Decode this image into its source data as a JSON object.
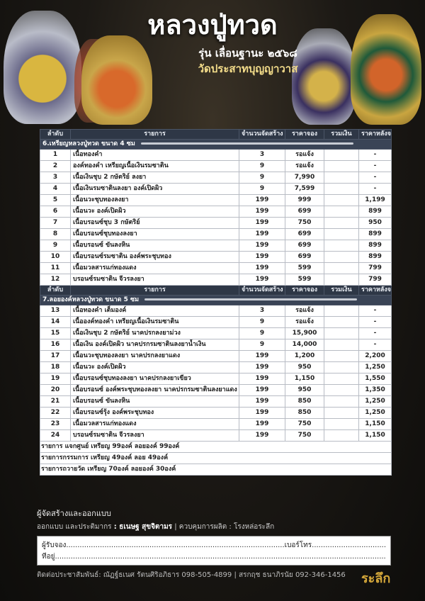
{
  "header": {
    "title": "หลวงปู่ทวด",
    "subtitle": "รุ่น เลื่อนฐานะ ๒๕๖๘",
    "temple": "วัดประสาทบุญญาวาส"
  },
  "columns": [
    "ลำดับ",
    "รายการ",
    "จำนวนจัดสร้าง",
    "ราคาจอง",
    "รวมเงิน",
    "ราคาหลังจอง"
  ],
  "sections": [
    {
      "title": "6.เหรียญหลวงปู่ทวด ขนาด 4 ซม",
      "rows": [
        [
          "1",
          "เนื้อทองคำ",
          "3",
          "รอแจ้ง",
          "",
          "-"
        ],
        [
          "2",
          "องค์ทองคำ เหรียญเนื้อเงินรมซาติน",
          "9",
          "รอแจ้ง",
          "",
          "-"
        ],
        [
          "3",
          "เนื้อเงินชุบ 2 กษัตริย์ ลงยา",
          "9",
          "7,990",
          "",
          "-"
        ],
        [
          "4",
          "เนื้อเงินรมซาตินลงยา องค์เปิดผิว",
          "9",
          "7,599",
          "",
          "-"
        ],
        [
          "5",
          "เนื้อนวะชุบทองลงยา",
          "199",
          "999",
          "",
          "1,199"
        ],
        [
          "6",
          "เนื้อนวะ องค์เปิดผิว",
          "199",
          "699",
          "",
          "899"
        ],
        [
          "7",
          "เนื้อบรอนซ์ชุบ 3 กษัตริย์",
          "199",
          "750",
          "",
          "950"
        ],
        [
          "8",
          "เนื้อบรอนซ์ชุบทองลงยา",
          "199",
          "699",
          "",
          "899"
        ],
        [
          "9",
          "เนื้อบรอนซ์ ขันลงหิน",
          "199",
          "699",
          "",
          "899"
        ],
        [
          "10",
          "เนื้อบรอนซ์รมซาติน องค์พระชุบทอง",
          "199",
          "699",
          "",
          "899"
        ],
        [
          "11",
          "เนื้อมวลสารแก่ทองแดง",
          "199",
          "599",
          "",
          "799"
        ],
        [
          "12",
          "บรอนซ์รมซาติน จีวรลงยา",
          "199",
          "599",
          "",
          "799"
        ]
      ]
    },
    {
      "title": "7.ลอยองค์หลวงปู่ทวด ขนาด 5 ซม",
      "rows": [
        [
          "13",
          "เนื้อทองคำ เต็มองค์",
          "3",
          "รอแจ้ง",
          "",
          "-"
        ],
        [
          "14",
          "เนื้อองค์ทองคำ เหรียญเนื้อเงินรมซาติน",
          "9",
          "รอแจ้ง",
          "",
          "-"
        ],
        [
          "15",
          "เนื้อเงินชุบ 2 กษัตริย์ นาคปรกลงยาม่วง",
          "9",
          "15,900",
          "",
          "-"
        ],
        [
          "16",
          "เนื้อเงิน องค์เปิดผิว นาคปรกรมซาตินลงยาน้ำเงิน",
          "9",
          "14,000",
          "",
          "-"
        ],
        [
          "17",
          "เนื้อนวะชุบทองลงยา นาคปรกลงยาแดง",
          "199",
          "1,200",
          "",
          "2,200"
        ],
        [
          "18",
          "เนื้อนวะ องค์เปิดผิว",
          "199",
          "950",
          "",
          "1,250"
        ],
        [
          "19",
          "เนื้อบรอนซ์ชุบทองลงยา นาคปรกลงยาเขียว",
          "199",
          "1,150",
          "",
          "1,550"
        ],
        [
          "20",
          "เนื้อบรอนซ์ องค์พระชุบทองลงยา นาคปรกรมซาตินลงยาแดง",
          "199",
          "950",
          "",
          "1,350"
        ],
        [
          "21",
          "เนื้อบรอนซ์ ขันลงหิน",
          "199",
          "850",
          "",
          "1,250"
        ],
        [
          "22",
          "เนื้อบรอนซ์รุ้ง องค์พระชุบทอง",
          "199",
          "850",
          "",
          "1,250"
        ],
        [
          "23",
          "เนื้อมวลสารแก่ทองแดง",
          "199",
          "750",
          "",
          "1,150"
        ],
        [
          "24",
          "บรอนซ์รมซาติน จีวรลงยา",
          "199",
          "750",
          "",
          "1,150"
        ]
      ]
    }
  ],
  "notes": [
    "รายการ แจกศูนย์ เหรียญ 99องค์ ลอยองค์ 99องค์",
    "รายการกรรมการ เหรียญ 49องค์ ลอย 49องค์",
    "รายการถวายวัด เหรียญ 70องค์ ลอยองค์ 30องค์"
  ],
  "footer": {
    "maker_title": "ผู้จัดสร้างและออกแบบ",
    "design_label": "ออกแบบ และประติมากร",
    "designer": ": ธเนษฐ สุขจิตามร",
    "production": "| ควบคุมการผลิต : โรงหล่อระลึก",
    "form_line1": "ผู้รับจอง.................................................................................................เบอร์โทร.......................................................................",
    "form_line2": "ที่อยู่..............................................................................................................................................................................................................",
    "contact": "ติดต่อประชาสัมพันธ์: ณัฏฐ์ธเนศ รัตนศิริอภิธาร 098-505-4899 | สรกฤช ธนาภิรนัย 092-346-1456",
    "logo": "ระลึก"
  },
  "colors": {
    "header_bg": "#2e3746",
    "section_bg": "#3a4456",
    "accent_gold": "#d4a73a"
  }
}
